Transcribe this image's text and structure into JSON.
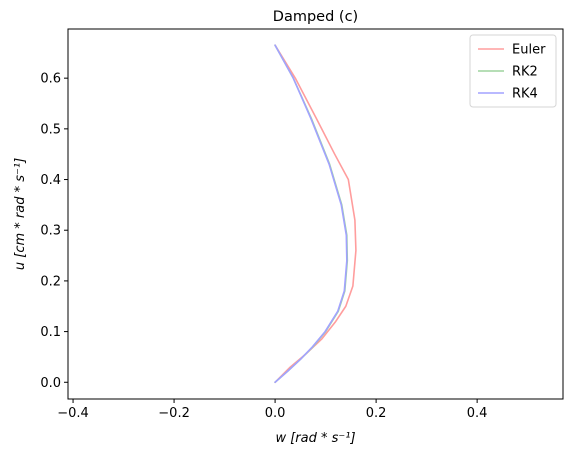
{
  "chart_data": {
    "type": "line",
    "title": "Damped (c)",
    "xlabel": "w   [rad * s⁻¹]",
    "ylabel": "u   [cm * rad * s⁻¹]",
    "xlim": [
      -0.41,
      0.57
    ],
    "ylim": [
      -0.033,
      0.697
    ],
    "xticks": [
      -0.4,
      -0.2,
      0.0,
      0.2,
      0.4
    ],
    "xtick_labels": [
      "−0.4",
      "−0.2",
      "0.0",
      "0.2",
      "0.4"
    ],
    "yticks": [
      0.0,
      0.1,
      0.2,
      0.3,
      0.4,
      0.5,
      0.6
    ],
    "ytick_labels": [
      "0.0",
      "0.1",
      "0.2",
      "0.3",
      "0.4",
      "0.5",
      "0.6"
    ],
    "grid": false,
    "legend_position": "top-right",
    "series": [
      {
        "name": "Euler",
        "color": "#ff9d9d",
        "x": [
          0.0,
          0.04,
          0.082,
          0.118,
          0.145,
          0.158,
          0.16,
          0.154,
          0.14,
          0.12,
          0.092,
          0.06,
          0.03,
          0.0
        ],
        "y": [
          0.665,
          0.6,
          0.52,
          0.45,
          0.4,
          0.32,
          0.26,
          0.19,
          0.15,
          0.12,
          0.085,
          0.055,
          0.03,
          0.0
        ]
      },
      {
        "name": "RK2",
        "color": "#9ed49e",
        "x": [
          0.0,
          0.036,
          0.072,
          0.108,
          0.132,
          0.142,
          0.143,
          0.138,
          0.125,
          0.1,
          0.075,
          0.05,
          0.025,
          0.0
        ],
        "y": [
          0.665,
          0.6,
          0.52,
          0.43,
          0.35,
          0.29,
          0.24,
          0.18,
          0.14,
          0.1,
          0.07,
          0.045,
          0.022,
          0.0
        ]
      },
      {
        "name": "RK4",
        "color": "#a2a2ff",
        "x": [
          0.0,
          0.036,
          0.071,
          0.107,
          0.131,
          0.141,
          0.142,
          0.137,
          0.124,
          0.099,
          0.074,
          0.05,
          0.025,
          0.0
        ],
        "y": [
          0.665,
          0.6,
          0.52,
          0.43,
          0.35,
          0.29,
          0.24,
          0.18,
          0.14,
          0.1,
          0.07,
          0.045,
          0.022,
          0.0
        ]
      }
    ]
  }
}
